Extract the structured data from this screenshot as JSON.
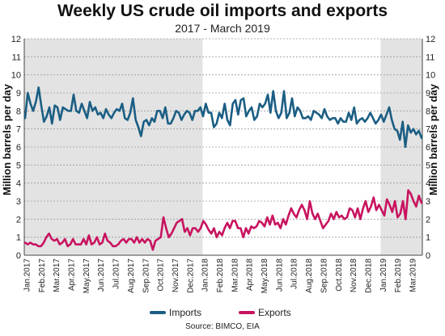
{
  "title": "Weekly US crude oil imports and exports",
  "subtitle": "2017 - March 2019",
  "source": "Source: BIMCO, EIA",
  "chart_data": {
    "type": "line",
    "ylabel_left": "Million barrels per day",
    "ylabel_right": "Million barrels per day",
    "ylim": [
      0,
      12
    ],
    "y_ticks": [
      0,
      1,
      2,
      3,
      4,
      5,
      6,
      7,
      8,
      9,
      10,
      11,
      12
    ],
    "grid": true,
    "legend_position": "bottom",
    "shaded_periods": [
      {
        "label": "2017",
        "start": "Jan.2017",
        "end": "Dec.2017"
      },
      {
        "label": "2019",
        "start": "Jan.2019",
        "end": "Mar.2019"
      }
    ],
    "month_labels": [
      "Jan.2017",
      "Feb.2017",
      "Mar.2017",
      "Apr.2017",
      "May.2017",
      "Jun.2017",
      "Jul.2017",
      "Aug.2017",
      "Sep.2017",
      "Oct.2017",
      "Nov.2017",
      "Dec.2017",
      "Jan.2018",
      "Feb.2018",
      "Mar.2018",
      "Apr.2018",
      "May.2018",
      "Jun.2018",
      "Jul.2018",
      "Aug.2018",
      "Sep.2018",
      "Oct.2018",
      "Nov.2018",
      "Dec.2018",
      "Jan.2019",
      "Feb.2019",
      "Mar.2019"
    ],
    "series": [
      {
        "name": "Imports",
        "color": "#1b5e84",
        "values": [
          7.6,
          9.0,
          8.4,
          8.0,
          8.5,
          9.3,
          8.3,
          7.4,
          7.7,
          8.2,
          7.3,
          8.3,
          8.2,
          7.5,
          8.2,
          8.1,
          8.0,
          8.0,
          8.9,
          8.0,
          7.9,
          8.4,
          8.0,
          7.6,
          8.5,
          8.0,
          8.2,
          7.8,
          7.9,
          7.6,
          8.1,
          7.8,
          7.6,
          7.9,
          8.1,
          8.0,
          8.4,
          7.6,
          7.5,
          7.9,
          8.7,
          7.5,
          7.1,
          6.6,
          7.4,
          7.5,
          7.2,
          7.6,
          7.4,
          8.0,
          8.0,
          7.6,
          8.2,
          7.3,
          7.3,
          7.6,
          8.0,
          7.9,
          7.5,
          7.8,
          8.0,
          7.9,
          7.5,
          8.0,
          8.0,
          8.2,
          7.7,
          8.4,
          7.9,
          7.9,
          7.1,
          7.3,
          7.9,
          7.6,
          8.4,
          7.5,
          7.2,
          8.4,
          8.6,
          7.8,
          8.6,
          8.7,
          7.7,
          8.0,
          8.2,
          7.5,
          7.7,
          8.4,
          8.2,
          8.4,
          8.9,
          7.9,
          9.1,
          8.0,
          7.6,
          7.9,
          9.1,
          7.6,
          7.9,
          8.7,
          7.7,
          8.2,
          8.0,
          7.6,
          7.6,
          7.7,
          7.5,
          8.0,
          7.9,
          7.8,
          7.6,
          8.1,
          7.7,
          7.5,
          7.6,
          7.6,
          7.3,
          7.6,
          7.4,
          7.4,
          7.9,
          7.5,
          8.2,
          7.3,
          7.5,
          7.6,
          7.4,
          7.6,
          7.9,
          7.6,
          7.3,
          7.5,
          7.8,
          7.4,
          7.8,
          8.2,
          7.5,
          7.0,
          6.9,
          6.4,
          7.4,
          6.0,
          7.2,
          6.8,
          7.0,
          6.7,
          6.9,
          6.5
        ]
      },
      {
        "name": "Exports",
        "color": "#c8135f",
        "values": [
          0.7,
          0.6,
          0.7,
          0.6,
          0.6,
          0.5,
          0.5,
          0.7,
          1.0,
          1.2,
          0.9,
          0.8,
          0.9,
          0.6,
          0.7,
          0.9,
          0.5,
          0.6,
          0.9,
          0.6,
          0.6,
          0.6,
          0.9,
          0.6,
          1.1,
          0.6,
          0.7,
          1.0,
          0.6,
          0.7,
          1.2,
          0.8,
          0.7,
          0.5,
          0.5,
          0.6,
          0.8,
          0.9,
          0.7,
          0.9,
          0.9,
          0.7,
          1.0,
          0.7,
          0.9,
          0.7,
          0.9,
          0.8,
          0.3,
          0.8,
          0.9,
          1.0,
          2.1,
          1.5,
          1.0,
          1.2,
          1.5,
          1.8,
          1.9,
          2.0,
          1.3,
          1.5,
          1.1,
          1.5,
          1.5,
          1.3,
          1.5,
          1.9,
          1.7,
          1.4,
          1.2,
          1.5,
          1.0,
          1.3,
          1.1,
          1.5,
          1.8,
          1.5,
          1.9,
          1.9,
          1.5,
          1.5,
          1.0,
          1.5,
          1.2,
          1.6,
          1.5,
          1.6,
          1.9,
          1.8,
          1.6,
          2.1,
          1.7,
          2.2,
          1.7,
          1.8,
          1.5,
          2.0,
          1.7,
          2.2,
          2.6,
          2.3,
          2.1,
          2.5,
          2.8,
          2.5,
          2.0,
          3.0,
          2.3,
          2.0,
          2.3,
          1.9,
          1.5,
          1.7,
          1.9,
          2.3,
          2.0,
          2.4,
          2.1,
          2.2,
          2.0,
          2.1,
          2.6,
          2.5,
          2.1,
          2.6,
          2.0,
          2.6,
          3.0,
          2.4,
          2.7,
          3.2,
          2.5,
          2.8,
          2.5,
          2.2,
          3.1,
          2.8,
          2.4,
          3.0,
          2.1,
          2.3,
          3.0,
          2.0,
          3.6,
          3.4,
          3.0,
          2.7,
          3.3,
          2.9
        ]
      }
    ]
  },
  "legend": [
    {
      "label": "Imports",
      "color": "#1b5e84"
    },
    {
      "label": "Exports",
      "color": "#c8135f"
    }
  ]
}
